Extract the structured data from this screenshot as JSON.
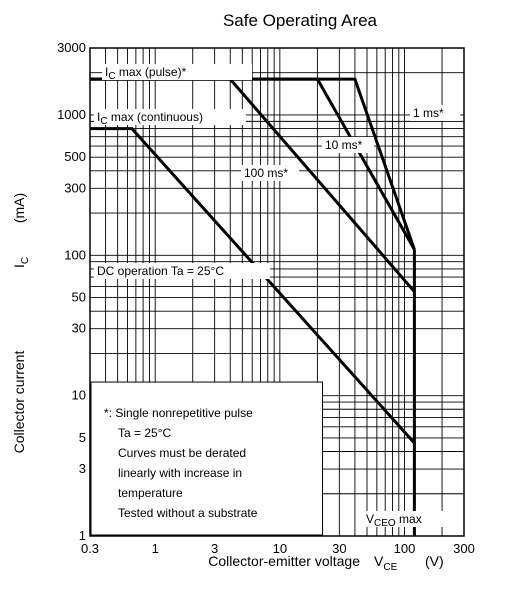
{
  "chart_data": {
    "type": "line",
    "title": "Safe Operating Area",
    "xlabel": "Collector-emitter voltage",
    "xlabel_symbol": "V",
    "xlabel_subscript": "CE",
    "xlabel_unit": "(V)",
    "ylabel": "Collector current",
    "ylabel_symbol": "I",
    "ylabel_subscript": "C",
    "ylabel_unit": "(mA)",
    "x_scale": "log",
    "y_scale": "log",
    "xlim": [
      0.3,
      300
    ],
    "ylim": [
      1,
      3000
    ],
    "grid": true,
    "x_ticks": [
      {
        "value": 0.3,
        "label": "0.3"
      },
      {
        "value": 1,
        "label": "1"
      },
      {
        "value": 3,
        "label": "3"
      },
      {
        "value": 10,
        "label": "10"
      },
      {
        "value": 30,
        "label": "30"
      },
      {
        "value": 100,
        "label": "100"
      },
      {
        "value": 300,
        "label": "300"
      }
    ],
    "y_ticks": [
      {
        "value": 1,
        "label": "1"
      },
      {
        "value": 3,
        "label": "3"
      },
      {
        "value": 5,
        "label": "5"
      },
      {
        "value": 10,
        "label": "10"
      },
      {
        "value": 30,
        "label": "30"
      },
      {
        "value": 50,
        "label": "50"
      },
      {
        "value": 100,
        "label": "100"
      },
      {
        "value": 300,
        "label": "300"
      },
      {
        "value": 500,
        "label": "500"
      },
      {
        "value": 1000,
        "label": "1000"
      },
      {
        "value": 3000,
        "label": "3000"
      }
    ],
    "series": [
      {
        "name": "1 ms*",
        "points": [
          [
            0.3,
            1800
          ],
          [
            40,
            1800
          ],
          [
            120,
            110
          ]
        ]
      },
      {
        "name": "10 ms*",
        "points": [
          [
            0.3,
            1800
          ],
          [
            20,
            1800
          ],
          [
            120,
            110
          ]
        ]
      },
      {
        "name": "100 ms*",
        "points": [
          [
            0.3,
            1800
          ],
          [
            4,
            1800
          ],
          [
            120,
            55
          ]
        ]
      },
      {
        "name": "DC operation",
        "points": [
          [
            0.3,
            800
          ],
          [
            0.65,
            800
          ],
          [
            120,
            4.6
          ]
        ]
      },
      {
        "name": "VCEO max",
        "points": [
          [
            120,
            110
          ],
          [
            120,
            1
          ]
        ]
      }
    ],
    "annotations": [
      {
        "text": "I",
        "sub": "C",
        "rest": " max (pulse)*"
      },
      {
        "text": "I",
        "sub": "C",
        "rest": " max (continuous)"
      },
      {
        "text": "1 ms*"
      },
      {
        "text": "10 ms*"
      },
      {
        "text": "100 ms*"
      },
      {
        "text": "DC operation Ta = 25°C"
      },
      {
        "text": "V",
        "sub": "CEO",
        "rest": " max"
      }
    ],
    "notes": [
      "*: Single nonrepetitive pulse",
      "Ta = 25°C",
      "Curves must be derated",
      "linearly with increase in",
      "temperature",
      "Tested without a substrate"
    ]
  }
}
